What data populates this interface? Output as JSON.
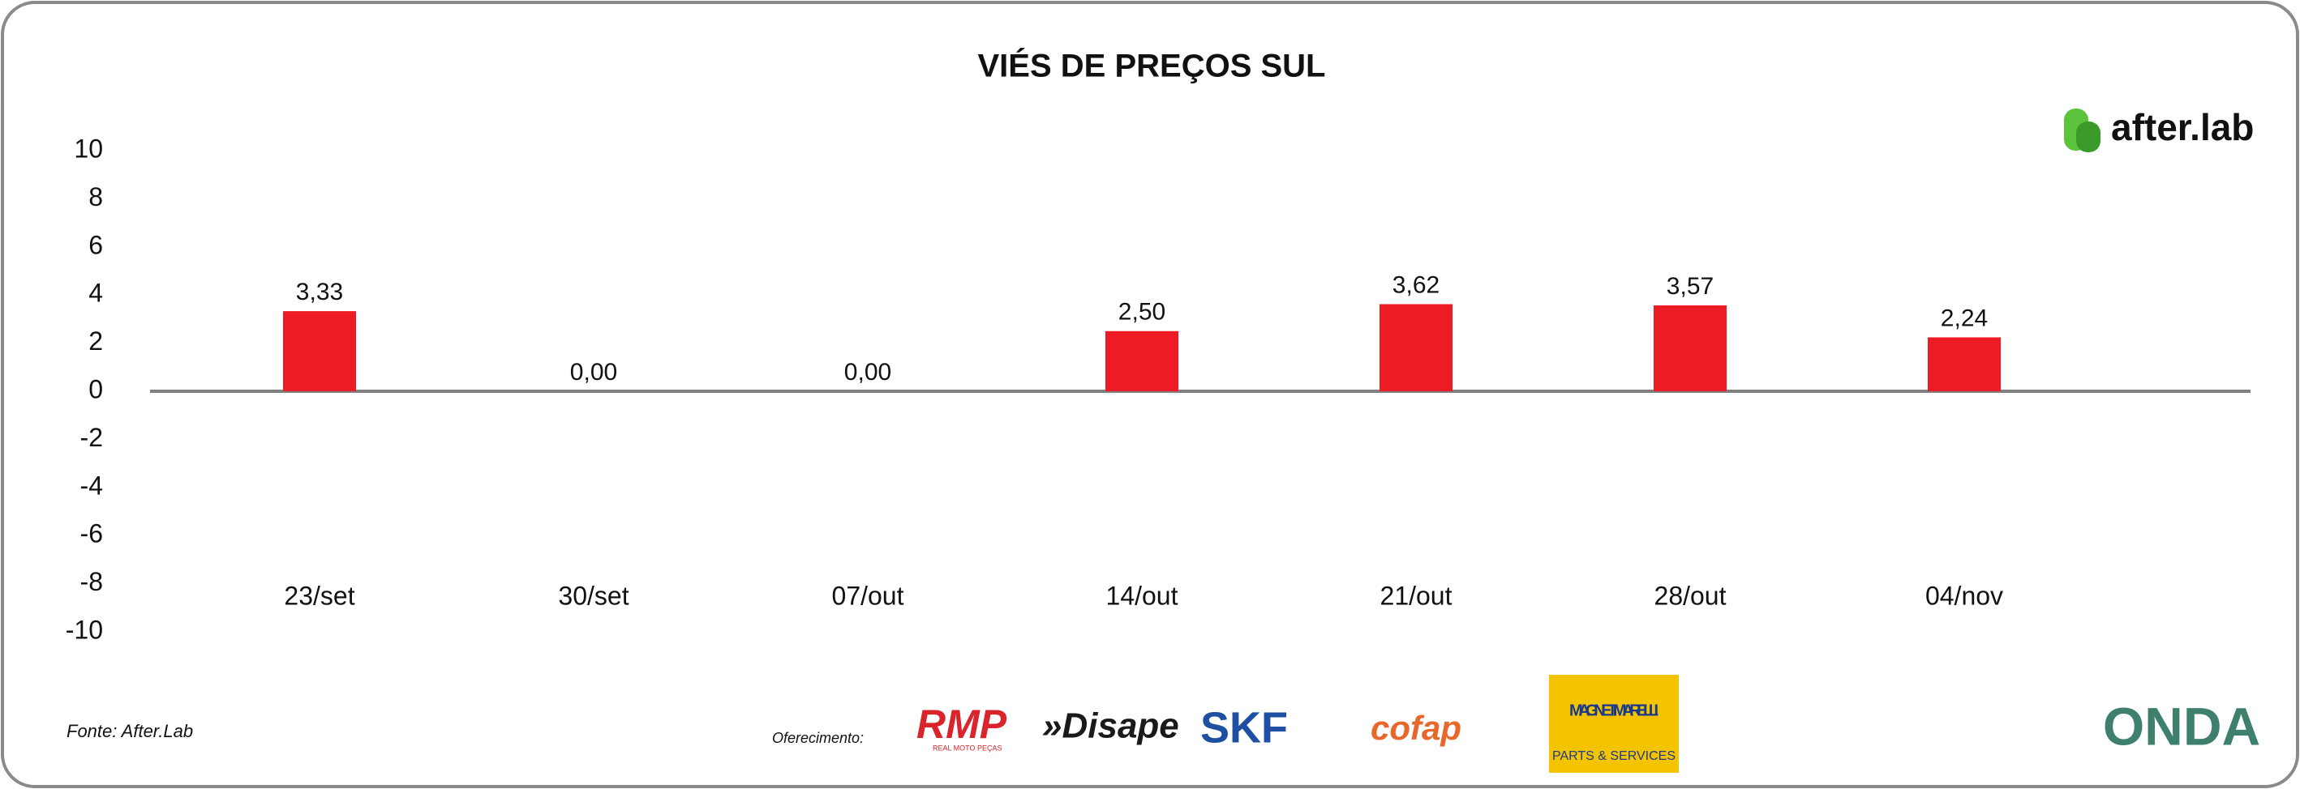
{
  "chart_data": {
    "type": "bar",
    "title": "VIÉS DE PREÇOS SUL",
    "categories": [
      "23/set",
      "30/set",
      "07/out",
      "14/out",
      "21/out",
      "28/out",
      "04/nov"
    ],
    "values": [
      3.33,
      0,
      0,
      2.5,
      3.62,
      3.57,
      2.24
    ],
    "value_labels": [
      "3,33",
      "0,00",
      "0,00",
      "2,50",
      "3,62",
      "3,57",
      "2,24"
    ],
    "color": "#ed1c24",
    "ylim": [
      -10,
      10
    ],
    "yticks": [
      -10,
      -8,
      -6,
      -4,
      -2,
      0,
      2,
      4,
      6,
      8,
      10
    ],
    "source": "Fonte: After.Lab",
    "sponsor_label": "Oferecimento:",
    "brand": "after.lab",
    "logos": [
      "RMP",
      "REAL MOTO PEÇAS",
      "»Disape",
      "SKF",
      "cofap",
      "MAGNETI MARELLI",
      "PARTS & SERVICES",
      "ONDA"
    ]
  }
}
